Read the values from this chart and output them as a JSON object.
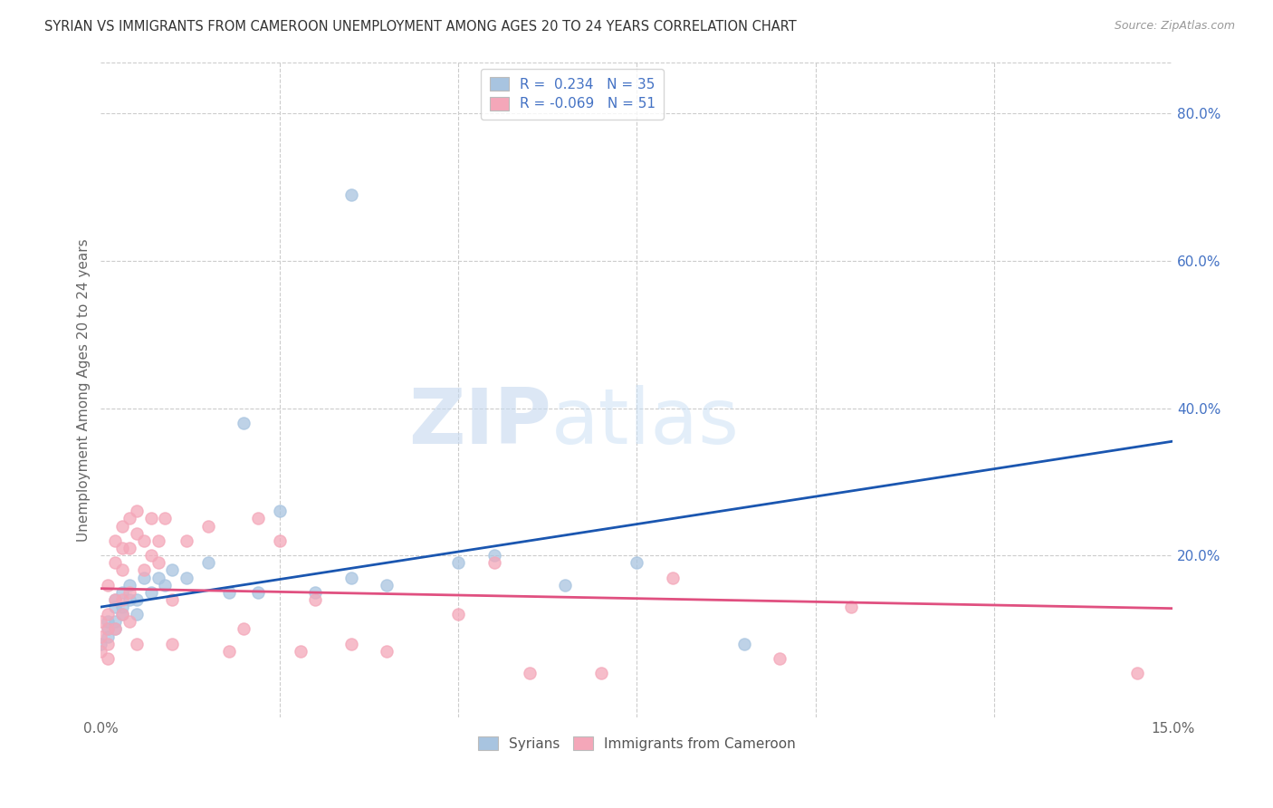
{
  "title": "SYRIAN VS IMMIGRANTS FROM CAMEROON UNEMPLOYMENT AMONG AGES 20 TO 24 YEARS CORRELATION CHART",
  "source": "Source: ZipAtlas.com",
  "ylabel": "Unemployment Among Ages 20 to 24 years",
  "xlim": [
    0.0,
    0.15
  ],
  "ylim": [
    -0.02,
    0.87
  ],
  "syrian_color": "#a8c4e0",
  "cameroon_color": "#f4a7b9",
  "syrian_line_color": "#1a56b0",
  "cameroon_line_color": "#e05080",
  "background_color": "#ffffff",
  "watermark_zip": "ZIP",
  "watermark_atlas": "atlas",
  "legend_R_syrian": " 0.234",
  "legend_N_syrian": "35",
  "legend_R_cameroon": "-0.069",
  "legend_N_cameroon": "51",
  "syrian_x": [
    0.0,
    0.001,
    0.001,
    0.001,
    0.002,
    0.002,
    0.002,
    0.002,
    0.003,
    0.003,
    0.003,
    0.004,
    0.004,
    0.005,
    0.005,
    0.006,
    0.007,
    0.008,
    0.009,
    0.01,
    0.012,
    0.015,
    0.018,
    0.02,
    0.022,
    0.025,
    0.03,
    0.035,
    0.04,
    0.05,
    0.055,
    0.065,
    0.075,
    0.09,
    0.035
  ],
  "syrian_y": [
    0.08,
    0.09,
    0.1,
    0.11,
    0.1,
    0.11,
    0.13,
    0.14,
    0.12,
    0.13,
    0.15,
    0.14,
    0.16,
    0.12,
    0.14,
    0.17,
    0.15,
    0.17,
    0.16,
    0.18,
    0.17,
    0.19,
    0.15,
    0.38,
    0.15,
    0.26,
    0.15,
    0.17,
    0.16,
    0.19,
    0.2,
    0.16,
    0.19,
    0.08,
    0.69
  ],
  "cameroon_x": [
    0.0,
    0.0,
    0.0,
    0.001,
    0.001,
    0.001,
    0.001,
    0.001,
    0.002,
    0.002,
    0.002,
    0.002,
    0.003,
    0.003,
    0.003,
    0.003,
    0.003,
    0.004,
    0.004,
    0.004,
    0.004,
    0.005,
    0.005,
    0.005,
    0.006,
    0.006,
    0.007,
    0.007,
    0.008,
    0.008,
    0.009,
    0.01,
    0.01,
    0.012,
    0.015,
    0.018,
    0.02,
    0.022,
    0.025,
    0.028,
    0.03,
    0.035,
    0.04,
    0.05,
    0.055,
    0.06,
    0.07,
    0.08,
    0.095,
    0.105,
    0.145
  ],
  "cameroon_y": [
    0.07,
    0.09,
    0.11,
    0.06,
    0.08,
    0.1,
    0.12,
    0.16,
    0.1,
    0.14,
    0.19,
    0.22,
    0.12,
    0.14,
    0.18,
    0.21,
    0.24,
    0.11,
    0.15,
    0.21,
    0.25,
    0.23,
    0.26,
    0.08,
    0.18,
    0.22,
    0.2,
    0.25,
    0.19,
    0.22,
    0.25,
    0.08,
    0.14,
    0.22,
    0.24,
    0.07,
    0.1,
    0.25,
    0.22,
    0.07,
    0.14,
    0.08,
    0.07,
    0.12,
    0.19,
    0.04,
    0.04,
    0.17,
    0.06,
    0.13,
    0.04
  ],
  "syrian_line_x": [
    0.0,
    0.15
  ],
  "syrian_line_y": [
    0.13,
    0.355
  ],
  "cameroon_line_x": [
    0.0,
    0.15
  ],
  "cameroon_line_y": [
    0.155,
    0.128
  ]
}
